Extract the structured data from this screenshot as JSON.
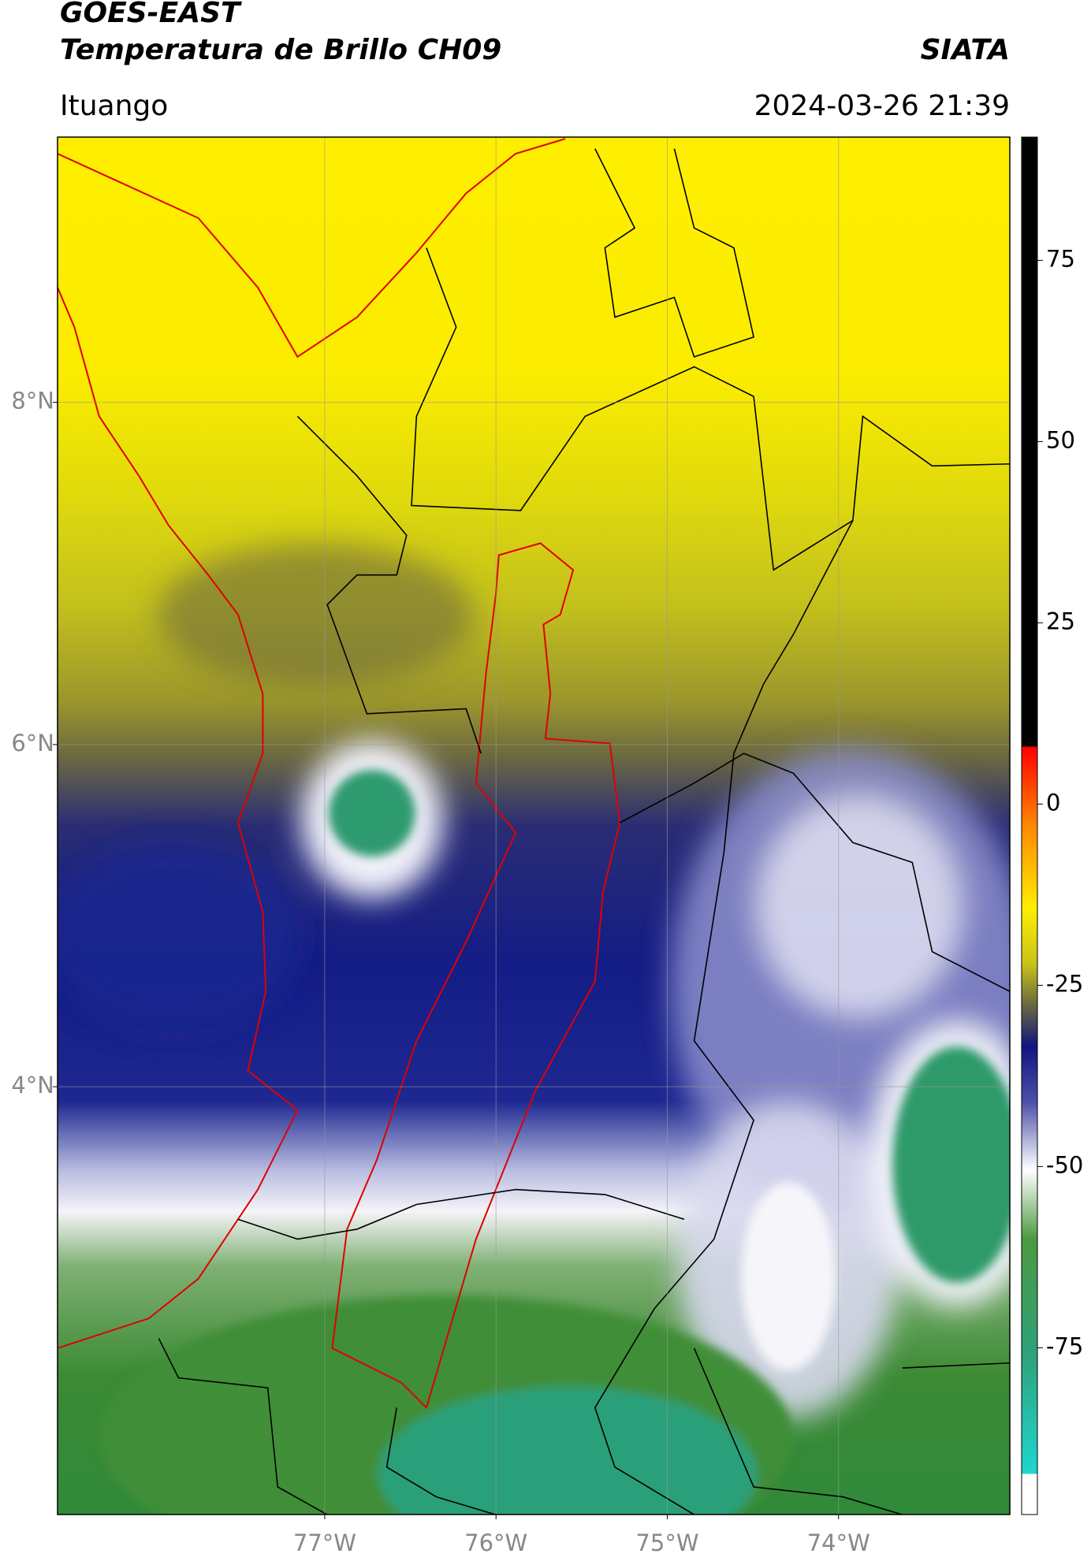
{
  "header": {
    "satellite": "GOES-EAST",
    "product": "Temperatura de Brillo CH09",
    "organization": "SIATA",
    "region": "Ituango",
    "datetime": "2024-03-26 21:39"
  },
  "map": {
    "xlim": [
      -78.56,
      -73.0
    ],
    "ylim": [
      1.5,
      9.55
    ],
    "xticks": [
      {
        "value": -77,
        "label": "77°W"
      },
      {
        "value": -76,
        "label": "76°W"
      },
      {
        "value": -75,
        "label": "75°W"
      },
      {
        "value": -74,
        "label": "74°W"
      }
    ],
    "yticks": [
      {
        "value": 8,
        "label": "8°N"
      },
      {
        "value": 6,
        "label": "6°N"
      },
      {
        "value": 4,
        "label": "4°N"
      }
    ],
    "grid": true
  },
  "colorbar": {
    "lim": [
      -98,
      92
    ],
    "ticks": [
      75,
      50,
      25,
      0,
      -25,
      -50,
      -75
    ]
  }
}
